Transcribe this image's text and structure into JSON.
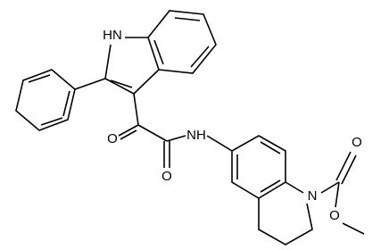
{
  "atoms": {
    "indole_nh": "HN",
    "ketone_o": "O",
    "amide_o": "O",
    "amide_nh": "NH",
    "ring_n": "N",
    "carbonyl_o": "O",
    "ester_o": "O"
  }
}
